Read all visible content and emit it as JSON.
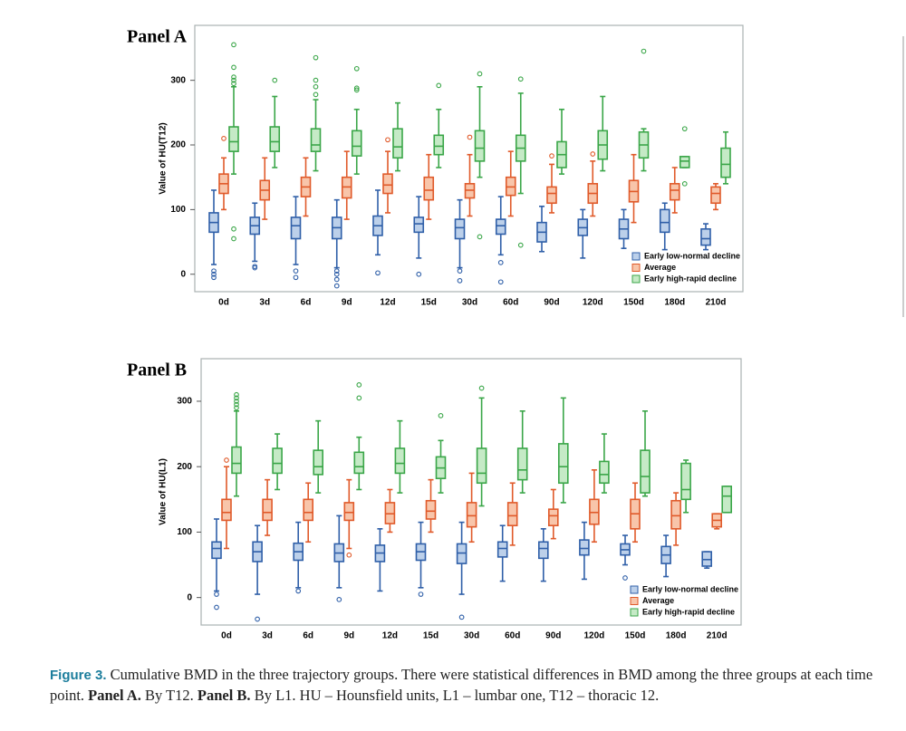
{
  "chart_data": [
    {
      "type": "box",
      "title": "Panel A",
      "y_label": "Value of HU(T12)",
      "categories": [
        "0d",
        "3d",
        "6d",
        "9d",
        "12d",
        "15d",
        "30d",
        "60d",
        "90d",
        "120d",
        "150d",
        "180d",
        "210d"
      ],
      "ylim": [
        -27,
        385
      ],
      "yticks": [
        0,
        100,
        200,
        300
      ],
      "grid": false,
      "legend": "lower right",
      "series": [
        {
          "name": "Early low-normal decline",
          "color": "#2f5fa8",
          "fill": "#bcd0ea",
          "boxes": [
            {
              "min": 15,
              "q1": 65,
              "median": 80,
              "q3": 95,
              "max": 130,
              "outliers": [
                5,
                0,
                -5
              ]
            },
            {
              "min": 20,
              "q1": 62,
              "median": 75,
              "q3": 88,
              "max": 110,
              "outliers": [
                10,
                12
              ]
            },
            {
              "min": 15,
              "q1": 55,
              "median": 75,
              "q3": 88,
              "max": 120,
              "outliers": [
                5,
                -5
              ]
            },
            {
              "min": 10,
              "q1": 55,
              "median": 72,
              "q3": 88,
              "max": 115,
              "outliers": [
                5,
                0,
                -8,
                -18
              ]
            },
            {
              "min": 30,
              "q1": 60,
              "median": 75,
              "q3": 90,
              "max": 130,
              "outliers": [
                2
              ]
            },
            {
              "min": 25,
              "q1": 65,
              "median": 78,
              "q3": 88,
              "max": 120,
              "outliers": [
                0
              ]
            },
            {
              "min": 10,
              "q1": 55,
              "median": 72,
              "q3": 85,
              "max": 115,
              "outliers": [
                5,
                -10
              ]
            },
            {
              "min": 30,
              "q1": 62,
              "median": 75,
              "q3": 85,
              "max": 120,
              "outliers": [
                18,
                -12
              ]
            },
            {
              "min": 35,
              "q1": 50,
              "median": 65,
              "q3": 80,
              "max": 105
            },
            {
              "min": 25,
              "q1": 60,
              "median": 72,
              "q3": 85,
              "max": 100
            },
            {
              "min": 40,
              "q1": 55,
              "median": 70,
              "q3": 85,
              "max": 100
            },
            {
              "min": 38,
              "q1": 65,
              "median": 80,
              "q3": 100,
              "max": 110
            },
            {
              "min": 38,
              "q1": 45,
              "median": 55,
              "q3": 70,
              "max": 78
            }
          ]
        },
        {
          "name": "Average",
          "color": "#e05a2a",
          "fill": "#f8c5aa",
          "boxes": [
            {
              "min": 100,
              "q1": 125,
              "median": 140,
              "q3": 155,
              "max": 180,
              "outliers": [
                210
              ]
            },
            {
              "min": 85,
              "q1": 115,
              "median": 130,
              "q3": 145,
              "max": 180
            },
            {
              "min": 90,
              "q1": 120,
              "median": 135,
              "q3": 150,
              "max": 180
            },
            {
              "min": 85,
              "q1": 118,
              "median": 135,
              "q3": 150,
              "max": 190
            },
            {
              "min": 95,
              "q1": 125,
              "median": 138,
              "q3": 155,
              "max": 190,
              "outliers": [
                208
              ]
            },
            {
              "min": 85,
              "q1": 115,
              "median": 130,
              "q3": 150,
              "max": 185
            },
            {
              "min": 90,
              "q1": 118,
              "median": 130,
              "q3": 140,
              "max": 185,
              "outliers": [
                212
              ]
            },
            {
              "min": 90,
              "q1": 122,
              "median": 135,
              "q3": 150,
              "max": 190
            },
            {
              "min": 95,
              "q1": 110,
              "median": 125,
              "q3": 135,
              "max": 170,
              "outliers": [
                183
              ]
            },
            {
              "min": 90,
              "q1": 110,
              "median": 125,
              "q3": 140,
              "max": 175,
              "outliers": [
                186
              ]
            },
            {
              "min": 80,
              "q1": 112,
              "median": 128,
              "q3": 145,
              "max": 185
            },
            {
              "min": 95,
              "q1": 115,
              "median": 130,
              "q3": 140,
              "max": 165
            },
            {
              "min": 100,
              "q1": 110,
              "median": 125,
              "q3": 135,
              "max": 140
            }
          ]
        },
        {
          "name": "Early high-rapid decline",
          "color": "#3aa648",
          "fill": "#c5eac6",
          "boxes": [
            {
              "min": 155,
              "q1": 190,
              "median": 205,
              "q3": 228,
              "max": 290,
              "outliers": [
                355,
                320,
                305,
                300,
                295,
                70,
                55
              ]
            },
            {
              "min": 165,
              "q1": 190,
              "median": 205,
              "q3": 228,
              "max": 275,
              "outliers": [
                300
              ]
            },
            {
              "min": 160,
              "q1": 190,
              "median": 200,
              "q3": 225,
              "max": 270,
              "outliers": [
                335,
                300,
                290,
                278
              ]
            },
            {
              "min": 155,
              "q1": 183,
              "median": 198,
              "q3": 222,
              "max": 255,
              "outliers": [
                318,
                288,
                285
              ]
            },
            {
              "min": 160,
              "q1": 180,
              "median": 197,
              "q3": 225,
              "max": 265
            },
            {
              "min": 165,
              "q1": 185,
              "median": 198,
              "q3": 215,
              "max": 255,
              "outliers": [
                292
              ]
            },
            {
              "min": 150,
              "q1": 175,
              "median": 195,
              "q3": 222,
              "max": 290,
              "outliers": [
                310,
                58
              ]
            },
            {
              "min": 125,
              "q1": 175,
              "median": 195,
              "q3": 215,
              "max": 280,
              "outliers": [
                302,
                45
              ]
            },
            {
              "min": 155,
              "q1": 165,
              "median": 185,
              "q3": 205,
              "max": 255
            },
            {
              "min": 160,
              "q1": 178,
              "median": 200,
              "q3": 222,
              "max": 275
            },
            {
              "min": 160,
              "q1": 180,
              "median": 200,
              "q3": 220,
              "max": 225,
              "outliers": [
                345
              ]
            },
            {
              "min": 165,
              "q1": 165,
              "median": 175,
              "q3": 182,
              "max": 182,
              "outliers": [
                225,
                140
              ]
            },
            {
              "min": 140,
              "q1": 150,
              "median": 170,
              "q3": 195,
              "max": 220
            }
          ]
        }
      ]
    },
    {
      "type": "box",
      "title": "Panel B",
      "y_label": "Value of HU(L1)",
      "categories": [
        "0d",
        "3d",
        "6d",
        "9d",
        "12d",
        "15d",
        "30d",
        "60d",
        "90d",
        "120d",
        "150d",
        "180d",
        "210d"
      ],
      "ylim": [
        -42,
        365
      ],
      "yticks": [
        0,
        100,
        200,
        300
      ],
      "grid": false,
      "legend": "lower right",
      "series": [
        {
          "name": "Early low-normal decline",
          "color": "#2f5fa8",
          "fill": "#bcd0ea",
          "boxes": [
            {
              "min": 10,
              "q1": 60,
              "median": 75,
              "q3": 85,
              "max": 120,
              "outliers": [
                5,
                -15
              ]
            },
            {
              "min": 5,
              "q1": 55,
              "median": 70,
              "q3": 85,
              "max": 110,
              "outliers": [
                -33
              ]
            },
            {
              "min": 15,
              "q1": 57,
              "median": 70,
              "q3": 83,
              "max": 115,
              "outliers": [
                10
              ]
            },
            {
              "min": 15,
              "q1": 55,
              "median": 68,
              "q3": 82,
              "max": 125,
              "outliers": [
                -3
              ]
            },
            {
              "min": 10,
              "q1": 55,
              "median": 68,
              "q3": 80,
              "max": 105
            },
            {
              "min": 15,
              "q1": 57,
              "median": 70,
              "q3": 82,
              "max": 115,
              "outliers": [
                5
              ]
            },
            {
              "min": 5,
              "q1": 52,
              "median": 68,
              "q3": 82,
              "max": 115,
              "outliers": [
                -30
              ]
            },
            {
              "min": 25,
              "q1": 62,
              "median": 75,
              "q3": 85,
              "max": 110
            },
            {
              "min": 25,
              "q1": 60,
              "median": 75,
              "q3": 85,
              "max": 105
            },
            {
              "min": 28,
              "q1": 65,
              "median": 75,
              "q3": 88,
              "max": 115
            },
            {
              "min": 50,
              "q1": 65,
              "median": 73,
              "q3": 82,
              "max": 95,
              "outliers": [
                30
              ]
            },
            {
              "min": 32,
              "q1": 52,
              "median": 65,
              "q3": 78,
              "max": 95
            },
            {
              "min": 45,
              "q1": 48,
              "median": 58,
              "q3": 70,
              "max": 70
            }
          ]
        },
        {
          "name": "Average",
          "color": "#e05a2a",
          "fill": "#f8c5aa",
          "boxes": [
            {
              "min": 75,
              "q1": 118,
              "median": 130,
              "q3": 150,
              "max": 200,
              "outliers": [
                210
              ]
            },
            {
              "min": 95,
              "q1": 118,
              "median": 130,
              "q3": 150,
              "max": 180
            },
            {
              "min": 85,
              "q1": 118,
              "median": 130,
              "q3": 150,
              "max": 175
            },
            {
              "min": 75,
              "q1": 118,
              "median": 130,
              "q3": 145,
              "max": 180,
              "outliers": [
                65
              ]
            },
            {
              "min": 100,
              "q1": 113,
              "median": 128,
              "q3": 145,
              "max": 165
            },
            {
              "min": 100,
              "q1": 120,
              "median": 132,
              "q3": 148,
              "max": 180
            },
            {
              "min": 85,
              "q1": 108,
              "median": 125,
              "q3": 145,
              "max": 190
            },
            {
              "min": 80,
              "q1": 110,
              "median": 125,
              "q3": 145,
              "max": 175
            },
            {
              "min": 90,
              "q1": 110,
              "median": 125,
              "q3": 135,
              "max": 165
            },
            {
              "min": 85,
              "q1": 112,
              "median": 130,
              "q3": 150,
              "max": 195
            },
            {
              "min": 85,
              "q1": 105,
              "median": 128,
              "q3": 150,
              "max": 175
            },
            {
              "min": 80,
              "q1": 105,
              "median": 125,
              "q3": 148,
              "max": 160
            },
            {
              "min": 105,
              "q1": 108,
              "median": 118,
              "q3": 128,
              "max": 128
            }
          ]
        },
        {
          "name": "Early high-rapid decline",
          "color": "#3aa648",
          "fill": "#c5eac6",
          "boxes": [
            {
              "min": 155,
              "q1": 190,
              "median": 205,
              "q3": 230,
              "max": 285,
              "outliers": [
                310,
                305,
                300,
                295,
                290
              ]
            },
            {
              "min": 165,
              "q1": 190,
              "median": 205,
              "q3": 228,
              "max": 250
            },
            {
              "min": 160,
              "q1": 188,
              "median": 200,
              "q3": 225,
              "max": 270
            },
            {
              "min": 165,
              "q1": 190,
              "median": 200,
              "q3": 222,
              "max": 245,
              "outliers": [
                325,
                305
              ]
            },
            {
              "min": 160,
              "q1": 190,
              "median": 205,
              "q3": 228,
              "max": 270
            },
            {
              "min": 160,
              "q1": 182,
              "median": 198,
              "q3": 215,
              "max": 240,
              "outliers": [
                278
              ]
            },
            {
              "min": 140,
              "q1": 175,
              "median": 190,
              "q3": 228,
              "max": 305,
              "outliers": [
                320
              ]
            },
            {
              "min": 160,
              "q1": 180,
              "median": 195,
              "q3": 228,
              "max": 285
            },
            {
              "min": 145,
              "q1": 175,
              "median": 200,
              "q3": 235,
              "max": 305
            },
            {
              "min": 160,
              "q1": 175,
              "median": 188,
              "q3": 208,
              "max": 250
            },
            {
              "min": 155,
              "q1": 160,
              "median": 185,
              "q3": 225,
              "max": 285
            },
            {
              "min": 130,
              "q1": 150,
              "median": 165,
              "q3": 205,
              "max": 210
            },
            {
              "min": 130,
              "q1": 130,
              "median": 155,
              "q3": 170,
              "max": 170
            }
          ]
        }
      ]
    }
  ],
  "caption": [
    {
      "text": "Figure 3.",
      "style": "label"
    },
    {
      "text": " Cumulative BMD in the three trajectory groups. There were statistical differences in BMD among the three groups at each time point. ",
      "style": "normal"
    },
    {
      "text": "Panel A.",
      "style": "bold"
    },
    {
      "text": " By T12. ",
      "style": "normal"
    },
    {
      "text": "Panel B.",
      "style": "bold"
    },
    {
      "text": " By L1. HU – Hounsfield units, L1 – lumbar one, T12 – thoracic 12.",
      "style": "normal"
    }
  ]
}
